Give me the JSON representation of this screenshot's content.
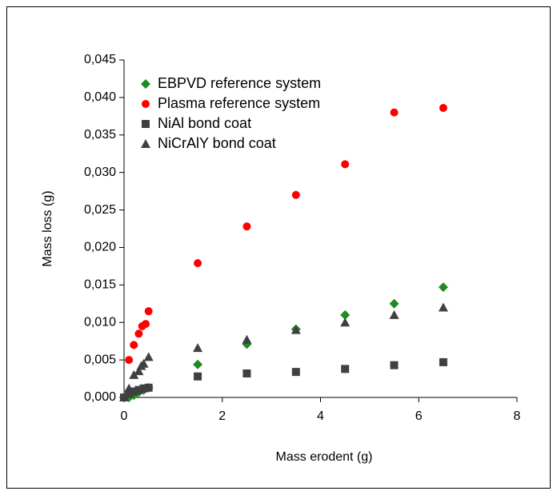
{
  "chart_data": {
    "type": "scatter",
    "xlabel": "Mass erodent (g)",
    "ylabel": "Mass loss (g)",
    "xlim": [
      0,
      8
    ],
    "ylim": [
      0,
      0.045
    ],
    "xticks": [
      0,
      2,
      4,
      6,
      8
    ],
    "yticks": [
      {
        "value": 0,
        "label": "0,000"
      },
      {
        "value": 0.005,
        "label": "0,005"
      },
      {
        "value": 0.01,
        "label": "0,010"
      },
      {
        "value": 0.015,
        "label": "0,015"
      },
      {
        "value": 0.02,
        "label": "0,020"
      },
      {
        "value": 0.025,
        "label": "0,025"
      },
      {
        "value": 0.03,
        "label": "0,030"
      },
      {
        "value": 0.035,
        "label": "0,035"
      },
      {
        "value": 0.04,
        "label": "0,040"
      },
      {
        "value": 0.045,
        "label": "0,045"
      }
    ],
    "legend": "upper-left",
    "series": [
      {
        "name": "EBPVD reference system",
        "color": "#1e8c1e",
        "marker": "diamond",
        "x": [
          0.1,
          0.2,
          0.3,
          0.4,
          0.5,
          1.5,
          2.5,
          3.5,
          4.5,
          5.5,
          6.5
        ],
        "values": [
          0.0,
          0.0003,
          0.0007,
          0.001,
          0.0013,
          0.0044,
          0.0071,
          0.0091,
          0.011,
          0.0125,
          0.0147
        ]
      },
      {
        "name": "Plasma reference system",
        "color": "#ff0000",
        "marker": "circle",
        "x": [
          0.1,
          0.2,
          0.3,
          0.37,
          0.44,
          0.5,
          1.5,
          2.5,
          3.5,
          4.5,
          5.5,
          6.5
        ],
        "values": [
          0.005,
          0.007,
          0.0085,
          0.0095,
          0.0098,
          0.0115,
          0.0179,
          0.0228,
          0.027,
          0.0311,
          0.038,
          0.0386
        ]
      },
      {
        "name": "NiAl bond coat",
        "color": "#404040",
        "marker": "square",
        "x": [
          0,
          0.1,
          0.2,
          0.3,
          0.4,
          0.5,
          1.5,
          2.5,
          3.5,
          4.5,
          5.5,
          6.5
        ],
        "values": [
          0,
          0.0005,
          0.0008,
          0.001,
          0.0012,
          0.0013,
          0.0028,
          0.0032,
          0.0034,
          0.0038,
          0.0043,
          0.0047
        ]
      },
      {
        "name": "NiCrAlY bond coat",
        "color": "#404040",
        "marker": "triangle",
        "x": [
          0,
          0.1,
          0.2,
          0.3,
          0.35,
          0.4,
          0.5,
          1.5,
          2.5,
          3.5,
          4.5,
          5.5,
          6.5
        ],
        "values": [
          0,
          0.0012,
          0.003,
          0.0035,
          0.0042,
          0.0045,
          0.0054,
          0.0066,
          0.0077,
          0.009,
          0.01,
          0.011,
          0.012
        ]
      }
    ]
  }
}
